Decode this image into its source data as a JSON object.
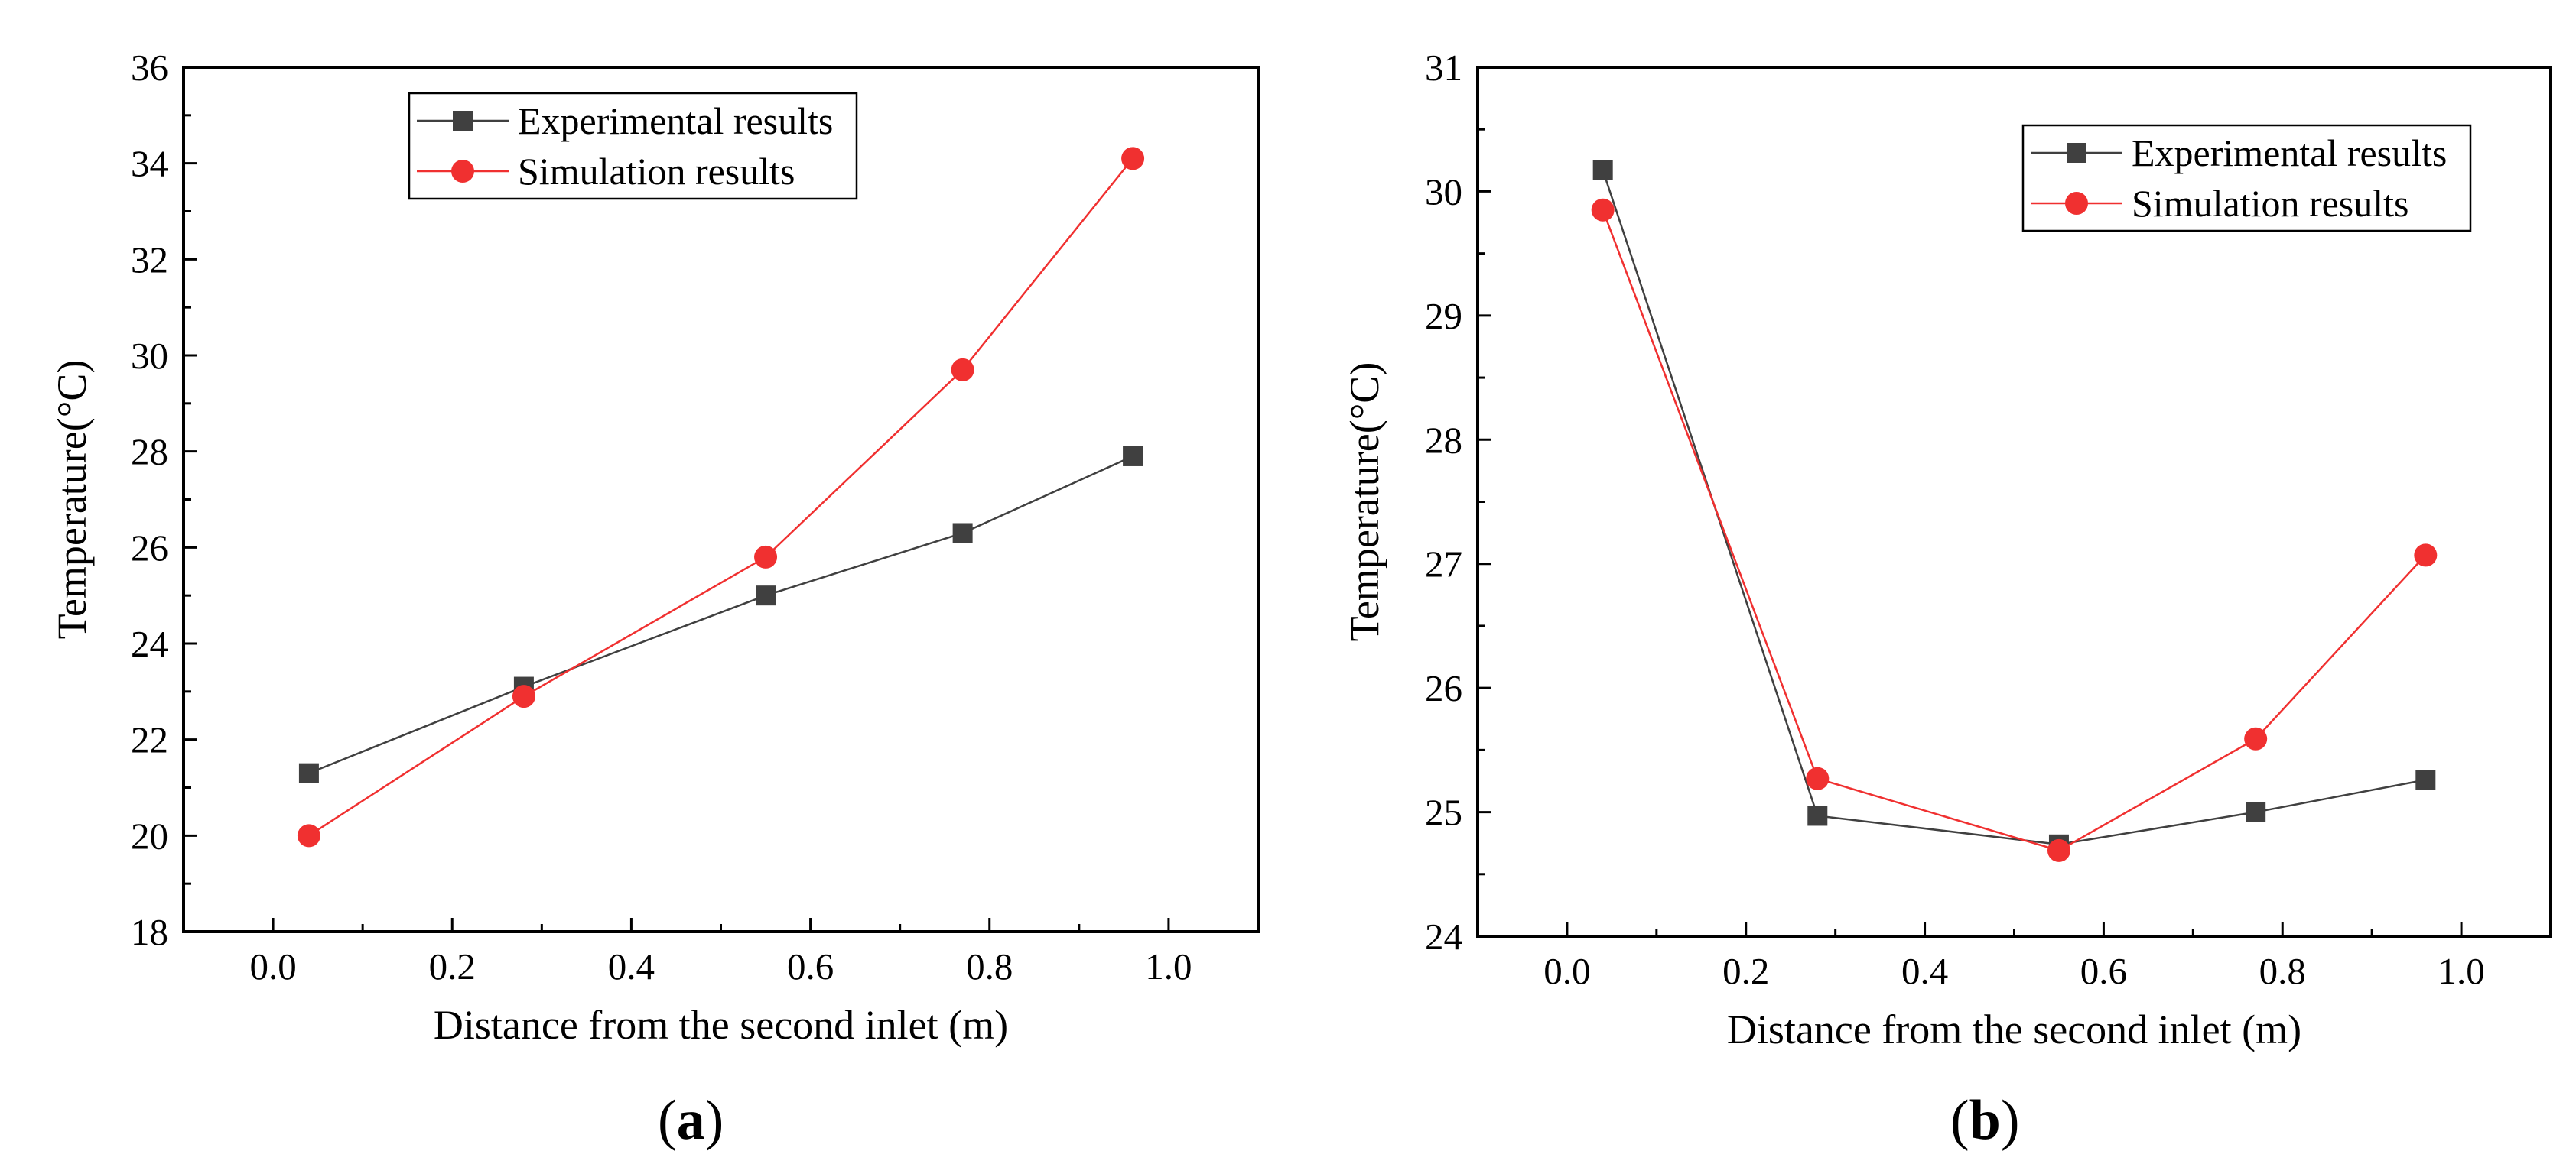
{
  "colors": {
    "experimental": "#404040",
    "simulation": "#f03030",
    "axis": "#000000"
  },
  "chart_data": [
    {
      "type": "line",
      "panel": "a",
      "panel_label": {
        "open": "(",
        "letter": "a",
        "close": ")"
      },
      "xlabel": "Distance from the second inlet (m)",
      "ylabel": "Temperature(°C)",
      "xlim": [
        -0.1,
        1.1
      ],
      "ylim": [
        18,
        36
      ],
      "xticks": [
        0.0,
        0.2,
        0.4,
        0.6,
        0.8,
        1.0
      ],
      "xtick_labels": [
        "0.0",
        "0.2",
        "0.4",
        "0.6",
        "0.8",
        "1.0"
      ],
      "yticks": [
        18,
        20,
        22,
        24,
        26,
        28,
        30,
        32,
        34,
        36
      ],
      "ytick_labels": [
        "18",
        "20",
        "22",
        "24",
        "26",
        "28",
        "30",
        "32",
        "34",
        "36"
      ],
      "legend_position": "top-center",
      "series": [
        {
          "name": "Experimental results",
          "marker": "square",
          "color": "#404040",
          "x": [
            0.04,
            0.28,
            0.55,
            0.77,
            0.96
          ],
          "y": [
            21.3,
            23.1,
            25.0,
            26.3,
            27.9
          ]
        },
        {
          "name": "Simulation results",
          "marker": "circle",
          "color": "#f03030",
          "x": [
            0.04,
            0.28,
            0.55,
            0.77,
            0.96
          ],
          "y": [
            20.0,
            22.9,
            25.8,
            29.7,
            34.1
          ]
        }
      ]
    },
    {
      "type": "line",
      "panel": "b",
      "panel_label": {
        "open": "(",
        "letter": "b",
        "close": ")"
      },
      "xlabel": "Distance from the second inlet (m)",
      "ylabel": "Temperature(°C)",
      "xlim": [
        -0.1,
        1.1
      ],
      "ylim": [
        24,
        31
      ],
      "xticks": [
        0.0,
        0.2,
        0.4,
        0.6,
        0.8,
        1.0
      ],
      "xtick_labels": [
        "0.0",
        "0.2",
        "0.4",
        "0.6",
        "0.8",
        "1.0"
      ],
      "yticks": [
        24,
        25,
        26,
        27,
        28,
        29,
        30,
        31
      ],
      "ytick_labels": [
        "24",
        "25",
        "26",
        "27",
        "28",
        "29",
        "30",
        "31"
      ],
      "legend_position": "top-right",
      "series": [
        {
          "name": "Experimental results",
          "marker": "square",
          "color": "#404040",
          "x": [
            0.04,
            0.28,
            0.55,
            0.77,
            0.96
          ],
          "y": [
            30.17,
            24.97,
            24.74,
            25.0,
            25.26
          ]
        },
        {
          "name": "Simulation results",
          "marker": "circle",
          "color": "#f03030",
          "x": [
            0.04,
            0.28,
            0.55,
            0.77,
            0.96
          ],
          "y": [
            29.85,
            25.27,
            24.69,
            25.59,
            27.07
          ]
        }
      ]
    }
  ]
}
